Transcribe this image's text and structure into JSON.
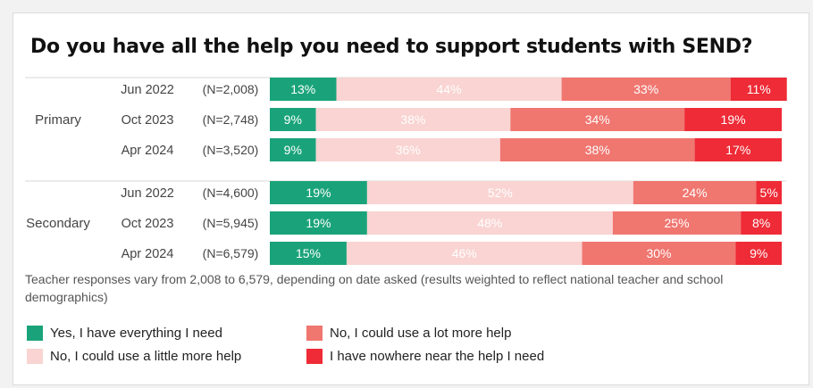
{
  "chart_data": {
    "type": "bar",
    "orientation": "horizontal",
    "stacked": true,
    "title": "Do you have all the help you need to support students with SEND?",
    "groups": [
      {
        "label": "Primary",
        "rows": [
          {
            "date": "Jun 2022",
            "n": "(N=2,008)",
            "values": [
              13,
              44,
              33,
              11
            ],
            "labels": [
              "13%",
              "44%",
              "33%",
              "11%"
            ]
          },
          {
            "date": "Oct 2023",
            "n": "(N=2,748)",
            "values": [
              9,
              38,
              34,
              19
            ],
            "labels": [
              "9%",
              "38%",
              "34%",
              "19%"
            ]
          },
          {
            "date": "Apr 2024",
            "n": "(N=3,520)",
            "values": [
              9,
              36,
              38,
              17
            ],
            "labels": [
              "9%",
              "36%",
              "38%",
              "17%"
            ]
          }
        ]
      },
      {
        "label": "Secondary",
        "rows": [
          {
            "date": "Jun 2022",
            "n": "(N=4,600)",
            "values": [
              19,
              52,
              24,
              5
            ],
            "labels": [
              "19%",
              "52%",
              "24%",
              "5%"
            ]
          },
          {
            "date": "Oct 2023",
            "n": "(N=5,945)",
            "values": [
              19,
              48,
              25,
              8
            ],
            "labels": [
              "19%",
              "48%",
              "25%",
              "8%"
            ]
          },
          {
            "date": "Apr 2024",
            "n": "(N=6,579)",
            "values": [
              15,
              46,
              30,
              9
            ],
            "labels": [
              "15%",
              "46%",
              "30%",
              "9%"
            ]
          }
        ]
      }
    ],
    "series": [
      {
        "name": "Yes, I have everything I need",
        "color": "#1aa37a",
        "label_color": "#ffffff"
      },
      {
        "name": "No, I could use a little more help",
        "color": "#f9d4d2",
        "label_color": "#ffffff"
      },
      {
        "name": "No, I could use a lot more help",
        "color": "#f07670",
        "label_color": "#ffffff"
      },
      {
        "name": "I have nowhere near the help I need",
        "color": "#ee2b36",
        "label_color": "#ffffff"
      }
    ],
    "xlim": [
      0,
      100
    ],
    "grid": false,
    "legend_position": "bottom-left",
    "note": "Teacher responses vary from 2,008 to 6,579, depending on date asked (results weighted to reflect national teacher and school demographics)"
  }
}
